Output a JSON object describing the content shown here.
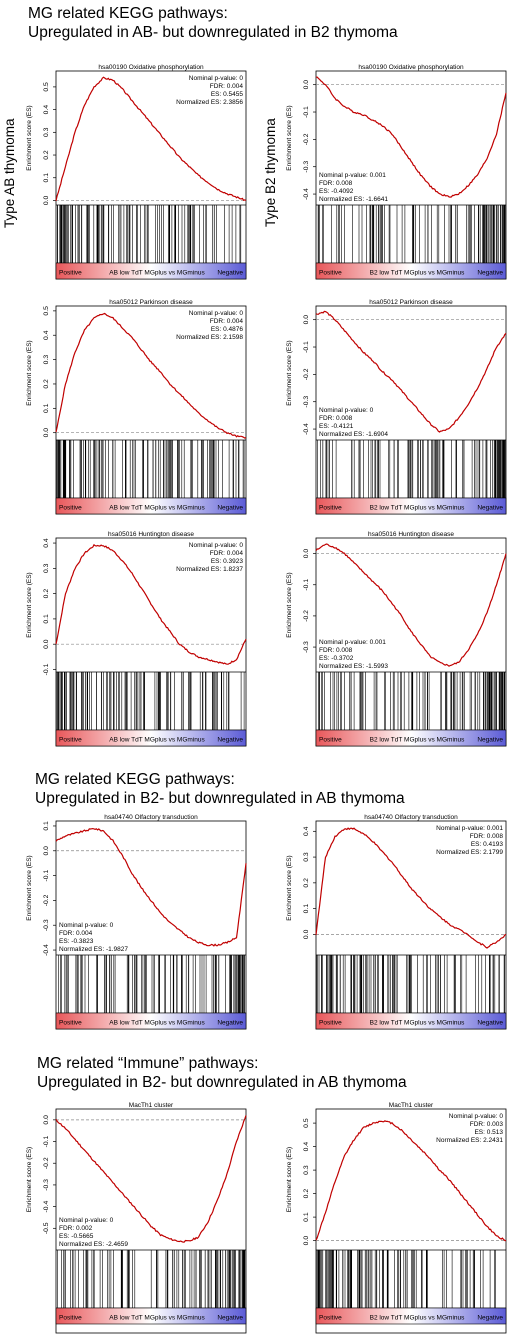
{
  "headings": [
    {
      "line1": "MG related KEGG pathways:",
      "line2": "Upregulated in AB- but downregulated in B2 thymoma"
    },
    {
      "line1": "MG related KEGG pathways:",
      "line2": "Upregulated in B2- but downregulated in AB thymoma"
    },
    {
      "line1": "MG related “Immune” pathways:",
      "line2": "Upregulated in B2- but downregulated in AB thymoma"
    }
  ],
  "side_labels": {
    "left": "Type AB thymoma",
    "right": "Type B2 thymoma"
  },
  "colors": {
    "curve": "#c00000",
    "bar_positive": "#e8575a",
    "bar_negative": "#5b5bd6",
    "dashed": "#888888"
  },
  "chart_data": [
    {
      "type": "line",
      "title": "hsa00190 Oxidative phosphorylation",
      "ylabel": "Enrichment score (ES)",
      "ylim": [
        -0.02,
        0.57
      ],
      "ticks": [
        "0.0",
        "0.1",
        "0.2",
        "0.3",
        "0.4",
        "0.5"
      ],
      "tickvals": [
        0,
        0.1,
        0.2,
        0.3,
        0.4,
        0.5
      ],
      "x": [
        0,
        0.05,
        0.1,
        0.15,
        0.2,
        0.25,
        0.3,
        0.35,
        0.4,
        0.45,
        0.5,
        0.55,
        0.6,
        0.65,
        0.7,
        0.75,
        0.8,
        0.85,
        0.9,
        0.95,
        1
      ],
      "y": [
        0,
        0.15,
        0.3,
        0.42,
        0.5,
        0.54,
        0.53,
        0.49,
        0.44,
        0.39,
        0.34,
        0.29,
        0.24,
        0.19,
        0.15,
        0.11,
        0.08,
        0.05,
        0.03,
        0.015,
        0
      ],
      "stats": [
        "Nominal p-value: 0",
        "FDR: 0.004",
        "ES: 0.5455",
        "Normalized ES: 2.3856"
      ],
      "stats_pos": "top-right",
      "bar_label": "AB low TdT MGplus vs MGminus",
      "pos_label": "Positive",
      "neg_label": "Negative"
    },
    {
      "type": "line",
      "title": "hsa00190 Oxidative phosphorylation",
      "ylabel": "Enrichment score (ES)",
      "ylim": [
        -0.44,
        0.05
      ],
      "ticks": [
        "0.0",
        "-0.1",
        "-0.2",
        "-0.3",
        "-0.4"
      ],
      "tickvals": [
        0,
        -0.1,
        -0.2,
        -0.3,
        -0.4
      ],
      "x": [
        0,
        0.05,
        0.1,
        0.15,
        0.2,
        0.25,
        0.3,
        0.35,
        0.4,
        0.45,
        0.5,
        0.55,
        0.6,
        0.65,
        0.7,
        0.75,
        0.8,
        0.85,
        0.9,
        0.95,
        1
      ],
      "y": [
        0.03,
        0,
        -0.05,
        -0.08,
        -0.1,
        -0.11,
        -0.13,
        -0.15,
        -0.18,
        -0.23,
        -0.28,
        -0.33,
        -0.37,
        -0.4,
        -0.41,
        -0.4,
        -0.37,
        -0.33,
        -0.27,
        -0.18,
        -0.03
      ],
      "stats": [
        "Nominal p-value: 0.001",
        "FDR: 0.008",
        "ES: -0.4092",
        "Normalized ES: -1.6641"
      ],
      "stats_pos": "bottom-left",
      "bar_label": "B2 low TdT MGplus vs MGminus",
      "pos_label": "Positive",
      "neg_label": "Negative"
    },
    {
      "type": "line",
      "title": "hsa05012 Parkinson disease",
      "ylabel": "Enrichment score (ES)",
      "ylim": [
        -0.03,
        0.52
      ],
      "ticks": [
        "0.0",
        "0.1",
        "0.2",
        "0.3",
        "0.4",
        "0.5"
      ],
      "tickvals": [
        0,
        0.1,
        0.2,
        0.3,
        0.4,
        0.5
      ],
      "x": [
        0,
        0.05,
        0.1,
        0.15,
        0.2,
        0.25,
        0.3,
        0.35,
        0.4,
        0.45,
        0.5,
        0.55,
        0.6,
        0.65,
        0.7,
        0.75,
        0.8,
        0.85,
        0.9,
        0.95,
        1
      ],
      "y": [
        0,
        0.2,
        0.33,
        0.42,
        0.47,
        0.49,
        0.47,
        0.43,
        0.39,
        0.34,
        0.29,
        0.25,
        0.2,
        0.16,
        0.12,
        0.08,
        0.05,
        0.02,
        0,
        -0.015,
        -0.02
      ],
      "stats": [
        "Nominal p-value: 0",
        "FDR: 0.004",
        "ES: 0.4876",
        "Normalized ES: 2.1598"
      ],
      "stats_pos": "top-right",
      "bar_label": "AB low TdT MGplus vs MGminus",
      "pos_label": "Positive",
      "neg_label": "Negative"
    },
    {
      "type": "line",
      "title": "hsa05012 Parkinson disease",
      "ylabel": "Enrichment score (ES)",
      "ylim": [
        -0.44,
        0.05
      ],
      "ticks": [
        "0.0",
        "-0.1",
        "-0.2",
        "-0.3",
        "-0.4"
      ],
      "tickvals": [
        0,
        -0.1,
        -0.2,
        -0.3,
        -0.4
      ],
      "x": [
        0,
        0.05,
        0.1,
        0.15,
        0.2,
        0.25,
        0.3,
        0.35,
        0.4,
        0.45,
        0.5,
        0.55,
        0.6,
        0.65,
        0.7,
        0.75,
        0.8,
        0.85,
        0.9,
        0.95,
        1
      ],
      "y": [
        0.02,
        0.03,
        0,
        -0.04,
        -0.08,
        -0.12,
        -0.15,
        -0.19,
        -0.22,
        -0.26,
        -0.3,
        -0.34,
        -0.38,
        -0.41,
        -0.4,
        -0.36,
        -0.31,
        -0.25,
        -0.18,
        -0.1,
        -0.05
      ],
      "stats": [
        "Nominal p-value: 0",
        "FDR: 0.008",
        "ES: -0.4121",
        "Normalized ES: -1.6904"
      ],
      "stats_pos": "bottom-left",
      "bar_label": "B2 low TdT MGplus vs MGminus",
      "pos_label": "Positive",
      "neg_label": "Negative"
    },
    {
      "type": "line",
      "title": "hsa05016 Huntington disease",
      "ylabel": "Enrichment score (ES)",
      "ylim": [
        -0.11,
        0.42
      ],
      "ticks": [
        "-0.1",
        "0.0",
        "0.1",
        "0.2",
        "0.3",
        "0.4"
      ],
      "tickvals": [
        -0.1,
        0,
        0.1,
        0.2,
        0.3,
        0.4
      ],
      "x": [
        0,
        0.05,
        0.1,
        0.15,
        0.2,
        0.25,
        0.3,
        0.35,
        0.4,
        0.45,
        0.5,
        0.55,
        0.6,
        0.65,
        0.7,
        0.75,
        0.8,
        0.85,
        0.9,
        0.95,
        1
      ],
      "y": [
        0,
        0.2,
        0.3,
        0.36,
        0.39,
        0.39,
        0.37,
        0.33,
        0.28,
        0.22,
        0.16,
        0.1,
        0.05,
        0,
        -0.03,
        -0.05,
        -0.06,
        -0.07,
        -0.08,
        -0.06,
        0.02
      ],
      "stats": [
        "Nominal p-value: 0",
        "FDR: 0.004",
        "ES: 0.3923",
        "Normalized ES: 1.8237"
      ],
      "stats_pos": "top-right",
      "bar_label": "AB low TdT MGplus vs MGminus",
      "pos_label": "Positive",
      "neg_label": "Negative"
    },
    {
      "type": "line",
      "title": "hsa05016 Huntington disease",
      "ylabel": "Enrichment score (ES)",
      "ylim": [
        -0.38,
        0.05
      ],
      "ticks": [
        "0.0",
        "-0.1",
        "-0.2",
        "-0.3"
      ],
      "tickvals": [
        0,
        -0.1,
        -0.2,
        -0.3
      ],
      "x": [
        0,
        0.05,
        0.1,
        0.15,
        0.2,
        0.25,
        0.3,
        0.35,
        0.4,
        0.45,
        0.5,
        0.55,
        0.6,
        0.65,
        0.7,
        0.75,
        0.8,
        0.85,
        0.9,
        0.95,
        1
      ],
      "y": [
        0.01,
        0.03,
        0.02,
        0,
        -0.03,
        -0.06,
        -0.09,
        -0.12,
        -0.16,
        -0.2,
        -0.25,
        -0.29,
        -0.33,
        -0.35,
        -0.36,
        -0.35,
        -0.31,
        -0.26,
        -0.19,
        -0.1,
        0
      ],
      "stats": [
        "Nominal p-value: 0.001",
        "FDR: 0.008",
        "ES: -0.3702",
        "Normalized ES: -1.5993"
      ],
      "stats_pos": "bottom-left",
      "bar_label": "B2 low TdT MGplus vs MGminus",
      "pos_label": "Positive",
      "neg_label": "Negative"
    },
    {
      "type": "line",
      "title": "hsa04740 Olfactory transduction",
      "ylabel": "Enrichment score (ES)",
      "ylim": [
        -0.42,
        0.12
      ],
      "ticks": [
        "0.1",
        "0.0",
        "-0.1",
        "-0.2",
        "-0.3",
        "-0.4"
      ],
      "tickvals": [
        0.1,
        0,
        -0.1,
        -0.2,
        -0.3,
        -0.4
      ],
      "x": [
        0,
        0.05,
        0.1,
        0.15,
        0.2,
        0.25,
        0.3,
        0.35,
        0.4,
        0.45,
        0.5,
        0.55,
        0.6,
        0.65,
        0.7,
        0.75,
        0.8,
        0.85,
        0.9,
        0.95,
        1
      ],
      "y": [
        0.04,
        0.06,
        0.07,
        0.08,
        0.09,
        0.08,
        0.04,
        -0.02,
        -0.09,
        -0.15,
        -0.2,
        -0.25,
        -0.29,
        -0.32,
        -0.35,
        -0.37,
        -0.38,
        -0.38,
        -0.37,
        -0.35,
        -0.05
      ],
      "stats": [
        "Nominal p-value: 0",
        "FDR: 0.004",
        "ES: -0.3823",
        "Normalized ES: -1.9827"
      ],
      "stats_pos": "bottom-left",
      "bar_label": "AB low TdT MGplus vs MGminus",
      "pos_label": "Positive",
      "neg_label": "Negative"
    },
    {
      "type": "line",
      "title": "hsa04740 Olfactory transduction",
      "ylabel": "Enrichment score (ES)",
      "ylim": [
        -0.08,
        0.44
      ],
      "ticks": [
        "0.0",
        "0.1",
        "0.2",
        "0.3",
        "0.4"
      ],
      "tickvals": [
        0,
        0.1,
        0.2,
        0.3,
        0.4
      ],
      "x": [
        0,
        0.05,
        0.1,
        0.15,
        0.2,
        0.25,
        0.3,
        0.35,
        0.4,
        0.45,
        0.5,
        0.55,
        0.6,
        0.65,
        0.7,
        0.75,
        0.8,
        0.85,
        0.9,
        0.95,
        1
      ],
      "y": [
        0,
        0.3,
        0.38,
        0.41,
        0.41,
        0.39,
        0.36,
        0.32,
        0.28,
        0.23,
        0.18,
        0.14,
        0.1,
        0.07,
        0.04,
        0.02,
        0,
        -0.03,
        -0.05,
        -0.03,
        0
      ],
      "stats": [
        "Nominal p-value: 0.001",
        "FDR: 0.008",
        "ES: 0.4193",
        "Normalized ES: 2.1799"
      ],
      "stats_pos": "top-right",
      "bar_label": "B2 low TdT MGplus vs MGminus",
      "pos_label": "Positive",
      "neg_label": "Negative"
    },
    {
      "type": "line",
      "title": "MacTh1 cluster",
      "ylabel": "Enrichment score (ES)",
      "ylim": [
        -0.6,
        0.05
      ],
      "ticks": [
        "0.0",
        "-0.1",
        "-0.2",
        "-0.3",
        "-0.4",
        "-0.5"
      ],
      "tickvals": [
        0,
        -0.1,
        -0.2,
        -0.3,
        -0.4,
        -0.5
      ],
      "x": [
        0,
        0.05,
        0.1,
        0.15,
        0.2,
        0.25,
        0.3,
        0.35,
        0.4,
        0.45,
        0.5,
        0.55,
        0.6,
        0.65,
        0.7,
        0.75,
        0.8,
        0.85,
        0.9,
        0.95,
        1
      ],
      "y": [
        0,
        -0.04,
        -0.09,
        -0.14,
        -0.19,
        -0.24,
        -0.29,
        -0.34,
        -0.39,
        -0.44,
        -0.49,
        -0.53,
        -0.55,
        -0.56,
        -0.56,
        -0.54,
        -0.47,
        -0.37,
        -0.25,
        -0.1,
        0.02
      ],
      "stats": [
        "Nominal p-value: 0",
        "FDR: 0.002",
        "ES: -0.5665",
        "Normalized ES: -2.4659"
      ],
      "stats_pos": "bottom-left",
      "bar_label": "AB low TdT MGplus vs MGminus",
      "pos_label": "Positive",
      "neg_label": "Negative"
    },
    {
      "type": "line",
      "title": "MacTh1 cluster",
      "ylabel": "Enrichment score (ES)",
      "ylim": [
        -0.04,
        0.56
      ],
      "ticks": [
        "0.0",
        "0.1",
        "0.2",
        "0.3",
        "0.4",
        "0.5"
      ],
      "tickvals": [
        0,
        0.1,
        0.2,
        0.3,
        0.4,
        0.5
      ],
      "x": [
        0,
        0.05,
        0.1,
        0.15,
        0.2,
        0.25,
        0.3,
        0.35,
        0.4,
        0.45,
        0.5,
        0.55,
        0.6,
        0.65,
        0.7,
        0.75,
        0.8,
        0.85,
        0.9,
        0.95,
        1
      ],
      "y": [
        0,
        0.12,
        0.25,
        0.36,
        0.43,
        0.48,
        0.5,
        0.51,
        0.5,
        0.47,
        0.43,
        0.39,
        0.35,
        0.3,
        0.26,
        0.21,
        0.16,
        0.11,
        0.06,
        0.02,
        0
      ],
      "stats": [
        "Nominal p-value: 0",
        "FDR: 0.003",
        "ES: 0.513",
        "Normalized ES: 2.2431"
      ],
      "stats_pos": "top-right",
      "bar_label": "B2 low TdT MGplus vs MGminus",
      "pos_label": "Positive",
      "neg_label": "Negative"
    }
  ]
}
